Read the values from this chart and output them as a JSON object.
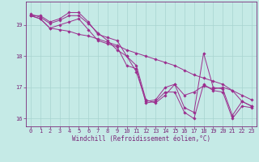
{
  "series": [
    {
      "x": [
        0,
        1,
        2,
        3,
        4,
        5,
        6,
        7,
        8,
        9,
        10,
        11,
        12,
        13,
        14,
        15,
        16,
        17,
        18,
        19,
        20,
        21,
        22,
        23
      ],
      "y": [
        19.3,
        19.3,
        19.1,
        19.2,
        19.4,
        19.4,
        19.1,
        18.7,
        18.6,
        18.5,
        18.0,
        17.5,
        16.55,
        16.6,
        17.0,
        17.1,
        16.35,
        16.2,
        18.1,
        17.0,
        16.95,
        16.1,
        16.55,
        16.4
      ]
    },
    {
      "x": [
        0,
        1,
        2,
        3,
        4,
        5,
        6,
        7,
        8,
        9,
        10,
        11,
        12,
        13,
        14,
        15,
        16,
        17,
        18,
        19,
        20,
        21,
        22,
        23
      ],
      "y": [
        19.3,
        19.2,
        18.9,
        19.0,
        19.1,
        19.2,
        18.85,
        18.5,
        18.4,
        18.3,
        17.7,
        17.6,
        16.5,
        16.55,
        16.85,
        16.85,
        16.2,
        16.0,
        17.1,
        16.9,
        16.85,
        16.0,
        16.4,
        16.35
      ]
    },
    {
      "x": [
        0,
        1,
        2,
        3,
        4,
        5,
        6,
        7,
        8,
        9,
        10,
        11,
        12,
        13,
        14,
        15,
        16,
        17,
        18,
        19,
        20,
        21,
        22,
        23
      ],
      "y": [
        19.3,
        19.2,
        18.9,
        18.85,
        18.8,
        18.7,
        18.65,
        18.55,
        18.45,
        18.35,
        18.2,
        18.1,
        18.0,
        17.9,
        17.8,
        17.7,
        17.55,
        17.4,
        17.3,
        17.2,
        17.1,
        16.9,
        16.75,
        16.6
      ]
    },
    {
      "x": [
        0,
        1,
        2,
        3,
        4,
        5,
        6,
        7,
        8,
        9,
        10,
        11,
        12,
        13,
        14,
        15,
        16,
        17,
        18,
        19,
        20,
        21,
        22,
        23
      ],
      "y": [
        19.35,
        19.25,
        19.05,
        19.15,
        19.3,
        19.3,
        19.05,
        18.75,
        18.5,
        18.2,
        18.0,
        17.7,
        16.6,
        16.5,
        16.75,
        17.1,
        16.75,
        16.85,
        17.05,
        16.95,
        17.0,
        16.9,
        16.55,
        16.4
      ]
    }
  ],
  "line_color": "#9b2d8e",
  "marker": "D",
  "marker_size": 1.8,
  "xlim": [
    -0.5,
    23.5
  ],
  "ylim": [
    15.75,
    19.75
  ],
  "yticks": [
    16,
    17,
    18,
    19
  ],
  "xticks": [
    0,
    1,
    2,
    3,
    4,
    5,
    6,
    7,
    8,
    9,
    10,
    11,
    12,
    13,
    14,
    15,
    16,
    17,
    18,
    19,
    20,
    21,
    22,
    23
  ],
  "xlabel": "Windchill (Refroidissement éolien,°C)",
  "background_color": "#c5eae6",
  "grid_color": "#a8d4d0",
  "axis_color": "#7a2a7a",
  "tick_color": "#7a2a7a",
  "label_fontsize": 5.5,
  "tick_fontsize": 5.0,
  "linewidth": 0.7
}
